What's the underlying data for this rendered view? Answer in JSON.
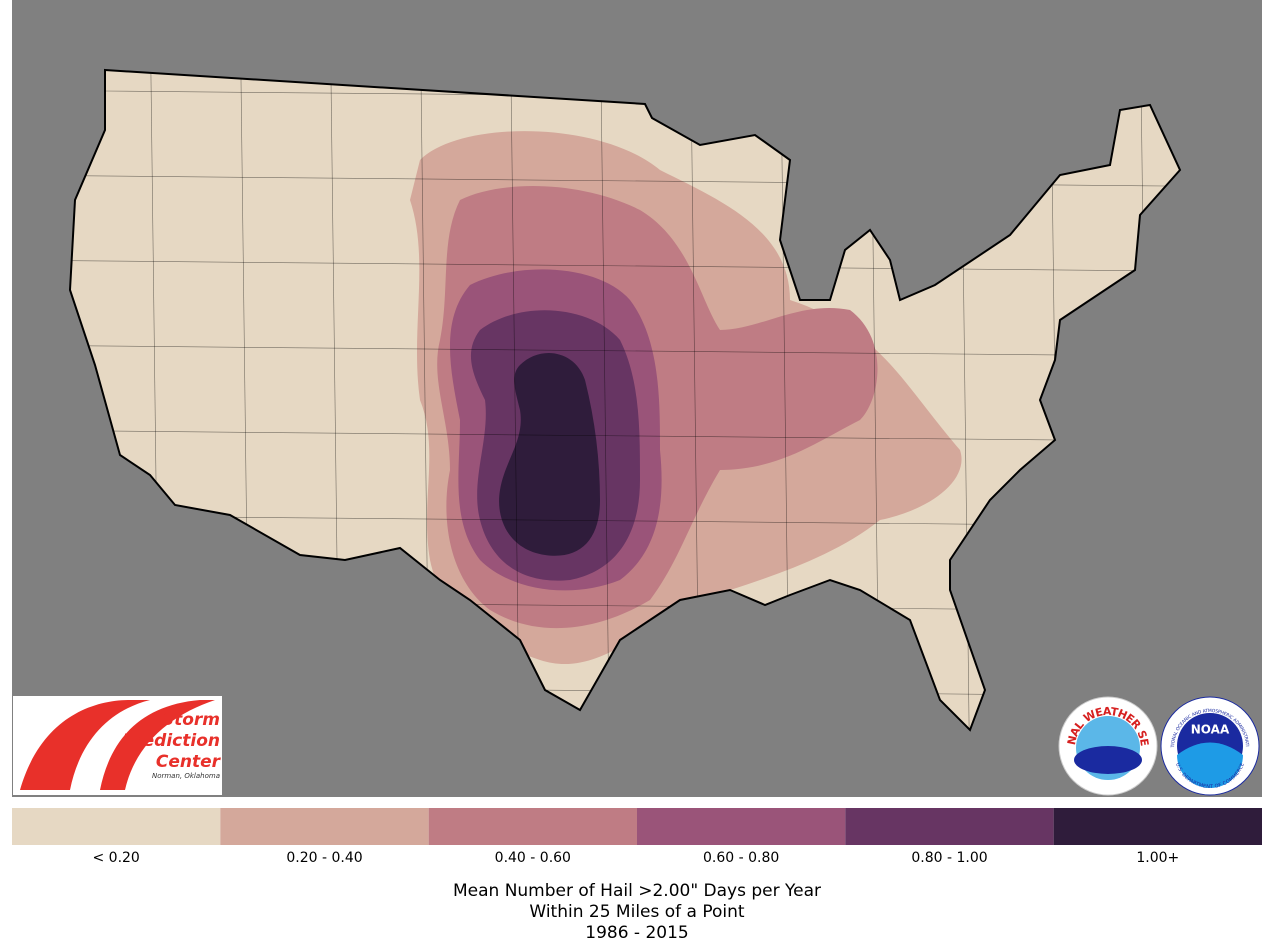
{
  "map": {
    "legend": [
      {
        "label": "< 0.20",
        "color": "#e6d8c3"
      },
      {
        "label": "0.20 - 0.40",
        "color": "#d4a89b"
      },
      {
        "label": "0.40 - 0.60",
        "color": "#bf7c84"
      },
      {
        "label": "0.60 - 0.80",
        "color": "#9a5479"
      },
      {
        "label": "0.80 - 1.00",
        "color": "#673563"
      },
      {
        "label": "1.00+",
        "color": "#2f1c3b"
      }
    ],
    "caption": [
      "Mean Number of Hail >2.00\" Days per Year",
      "Within 25 Miles of a Point",
      "1986 - 2015"
    ],
    "logos": {
      "spc": {
        "lines": [
          "Storm",
          "Prediction",
          "Center"
        ],
        "location": "Norman, Oklahoma"
      },
      "nws": "NATIONAL WEATHER SERVICE",
      "noaa": {
        "name": "NOAA",
        "ring": "NATIONAL OCEANIC AND ATMOSPHERIC ADMINISTRATION",
        "dept": "U.S. DEPARTMENT OF COMMERCE"
      }
    }
  }
}
